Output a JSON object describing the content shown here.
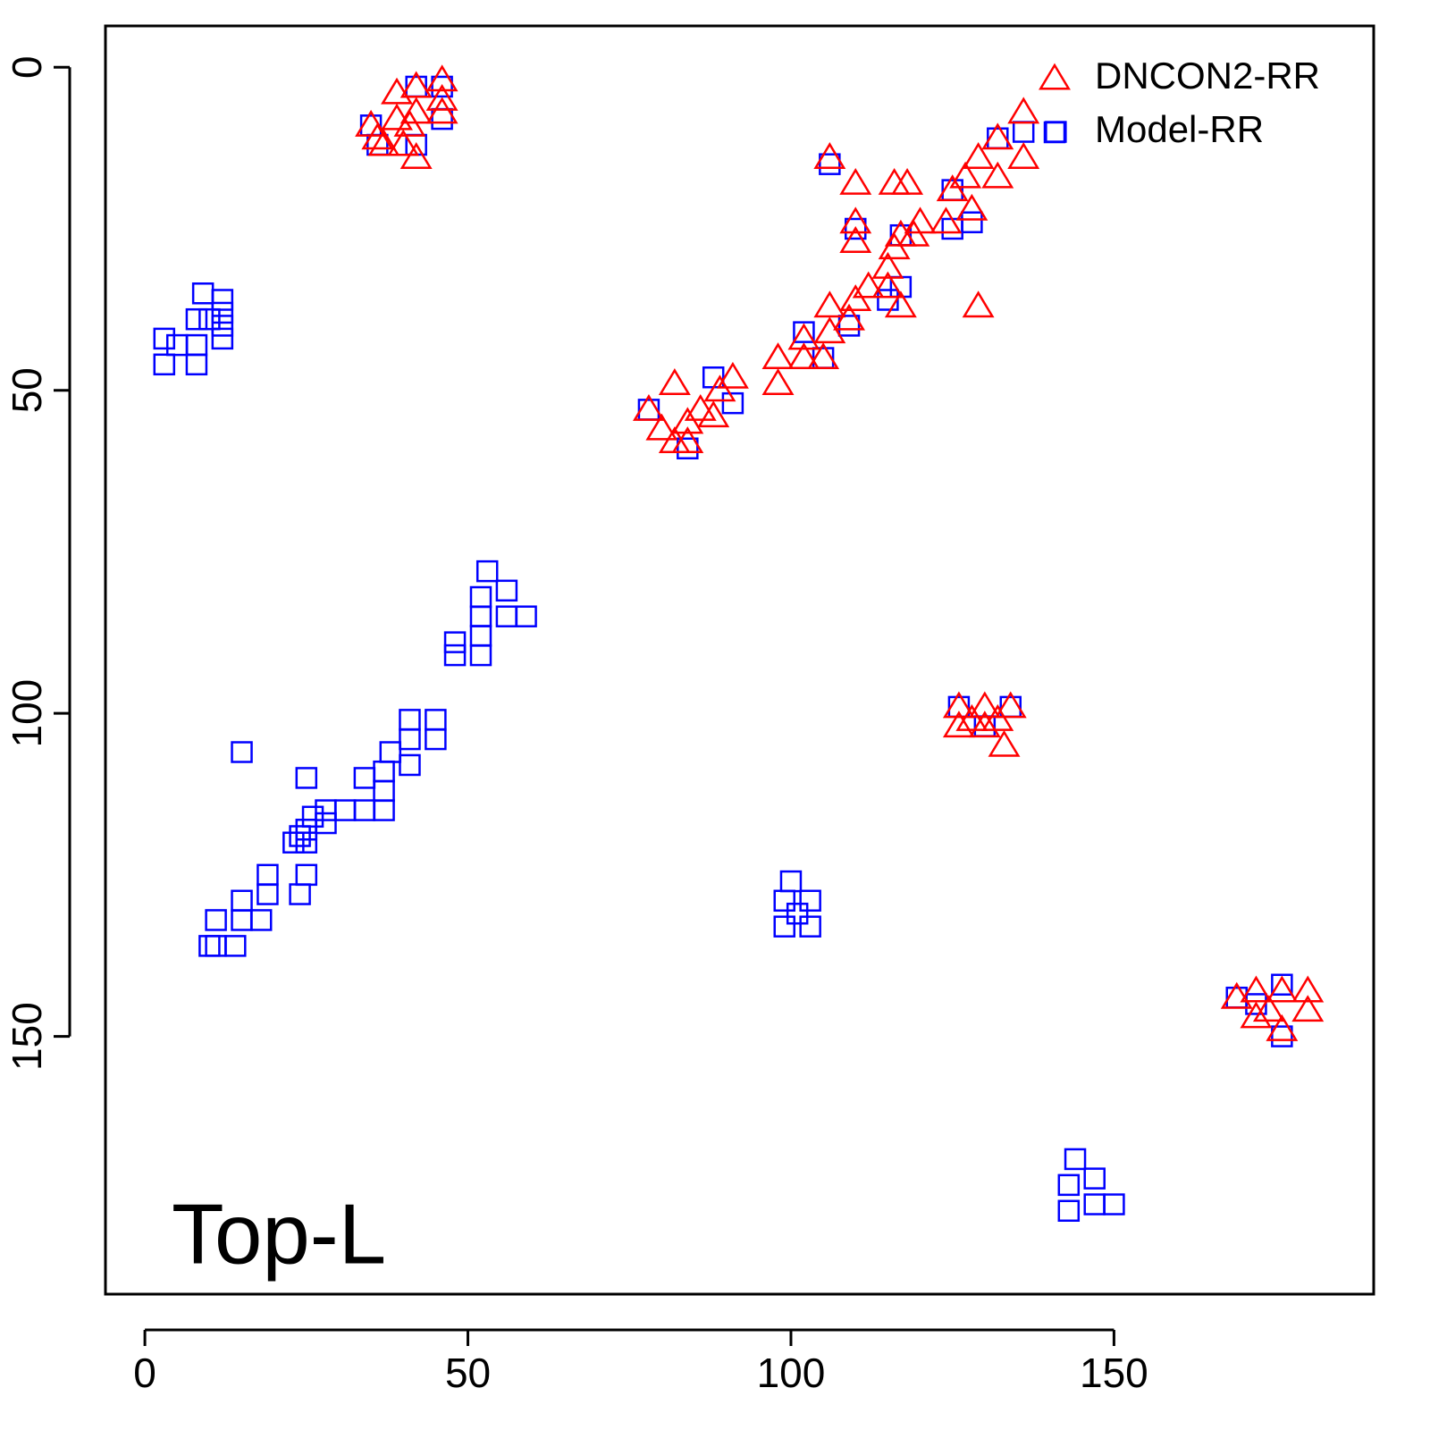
{
  "chart_data": {
    "type": "scatter",
    "annotation": "Top-L",
    "legend": "top-right",
    "xlim": [
      -6.1,
      190.2
    ],
    "ylim": [
      189.9,
      -6.4
    ],
    "xticks": [
      0,
      50,
      100,
      150
    ],
    "yticks": [
      0,
      50,
      100,
      150
    ],
    "series": [
      {
        "name": "DNCON2-RR",
        "color": "#ff0000",
        "marker": "triangle",
        "x": [
          35,
          39,
          39,
          41,
          42,
          42,
          42,
          46,
          46,
          46,
          37,
          40,
          36,
          106,
          110,
          110,
          110,
          116,
          118,
          129,
          136,
          136,
          132,
          132,
          129,
          127,
          125,
          128,
          124,
          120,
          119,
          117,
          116,
          115,
          115,
          117,
          112,
          110,
          109,
          106,
          106,
          102,
          102,
          105,
          98,
          98,
          88,
          89,
          91,
          82,
          78,
          80,
          84,
          86,
          82,
          84,
          126,
          126,
          130,
          130,
          133,
          134,
          128,
          132,
          169,
          172,
          172,
          176,
          180,
          180,
          176,
          174
        ],
        "values": [
          9,
          4,
          8,
          9,
          14,
          7,
          3,
          2,
          5,
          7,
          12,
          12,
          11,
          14,
          18,
          24,
          27,
          18,
          18,
          37,
          7,
          14,
          11,
          17,
          14,
          17,
          19,
          22,
          24,
          24,
          26,
          26,
          28,
          31,
          34,
          37,
          34,
          36,
          39,
          37,
          41,
          42,
          45,
          45,
          45,
          49,
          54,
          50,
          48,
          49,
          53,
          56,
          55,
          53,
          58,
          58,
          99,
          102,
          99,
          102,
          105,
          99,
          101,
          101,
          144,
          143,
          147,
          143,
          143,
          146,
          149,
          146
        ]
      },
      {
        "name": "Model-RR",
        "color": "#0000ff",
        "marker": "square",
        "x": [
          3,
          3,
          5,
          8,
          8,
          8,
          9,
          12,
          12,
          12,
          12,
          10,
          53,
          52,
          56,
          56,
          59,
          52,
          52,
          52,
          48,
          48,
          45,
          45,
          41,
          41,
          41,
          38,
          37,
          37,
          37,
          34,
          34,
          31,
          28,
          28,
          26,
          25,
          25,
          24,
          23,
          25,
          15,
          25,
          24,
          19,
          19,
          18,
          15,
          15,
          11,
          11,
          14,
          10,
          100,
          99,
          99,
          103,
          103,
          101,
          144,
          143,
          143,
          147,
          147,
          150,
          35,
          36,
          42,
          46,
          46,
          42,
          106,
          110,
          132,
          136,
          141,
          125,
          125,
          128,
          117,
          115,
          117,
          102,
          105,
          109,
          78,
          84,
          88,
          91,
          126,
          130,
          134,
          169,
          176,
          176,
          172
        ],
        "values": [
          42,
          46,
          43,
          46,
          43,
          39,
          35,
          36,
          38,
          40,
          42,
          39,
          78,
          82,
          81,
          85,
          85,
          85,
          88,
          91,
          89,
          91,
          101,
          104,
          101,
          104,
          108,
          106,
          109,
          112,
          115,
          110,
          115,
          115,
          115,
          117,
          116,
          110,
          118,
          119,
          120,
          120,
          106,
          125,
          128,
          125,
          128,
          132,
          129,
          132,
          132,
          136,
          136,
          136,
          126,
          129,
          133,
          129,
          133,
          131,
          169,
          173,
          177,
          172,
          176,
          176,
          9,
          12,
          3,
          8,
          3,
          12,
          15,
          25,
          11,
          10,
          10,
          19,
          25,
          24,
          26,
          36,
          34,
          41,
          45,
          40,
          53,
          59,
          48,
          52,
          99,
          102,
          99,
          144,
          150,
          142,
          145
        ]
      }
    ]
  }
}
